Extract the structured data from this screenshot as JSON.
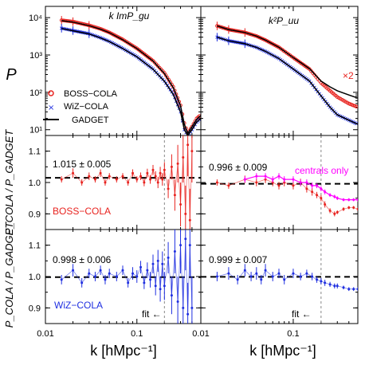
{
  "colors": {
    "boss": "#e8231f",
    "wiz": "#1f2fe0",
    "gadget": "#000000",
    "centrals": "#ff00ff",
    "ref_line": "#000000",
    "fit_line": "#888888"
  },
  "axes": {
    "y_top_label": "P",
    "y_ratio_label": "P_COLA / P_GADGET",
    "x_label": "k [hMpc⁻¹]",
    "x_ticks": [
      "0.01",
      "0.1"
    ],
    "x_ticks_right": [
      "0.01",
      "0.1"
    ],
    "y_top_ticks": [
      "10¹",
      "10²",
      "10³",
      "10⁴"
    ],
    "y_ratio_ticks": [
      "0.9",
      "1.0",
      "1.1"
    ]
  },
  "panels": {
    "top_left_title": "k ImP_gu",
    "top_right_title": "k²P_uu",
    "x2_note": "×2",
    "mid_left_value": "1.015 ± 0.005",
    "mid_left_tag": "BOSS−COLA",
    "mid_right_value": "0.996 ± 0.009",
    "mid_right_tag": "centrals only",
    "bot_left_value": "0.998 ± 0.006",
    "bot_left_tag": "WiZ−COLA",
    "bot_right_value": "0.999 ± 0.007",
    "fit_note_left": "fit ←",
    "fit_note_right": "fit ←"
  },
  "legend": {
    "boss": "BOSS−COLA",
    "wiz": "WiZ−COLA",
    "gadget": "GADGET"
  },
  "chart_data": [
    {
      "type": "line",
      "panel": "top-left",
      "title": "k ImP_gu",
      "xlabel": "",
      "ylabel": "P",
      "xscale": "log",
      "yscale": "log",
      "xlim": [
        0.01,
        0.5
      ],
      "ylim": [
        7,
        20000
      ],
      "series": [
        {
          "name": "BOSS−COLA",
          "x": [
            0.015,
            0.02,
            0.03,
            0.04,
            0.05,
            0.07,
            0.1,
            0.15,
            0.2,
            0.25,
            0.3,
            0.33,
            0.36,
            0.4,
            0.45,
            0.5
          ],
          "y": [
            8500,
            7800,
            6200,
            5000,
            4000,
            2600,
            1500,
            700,
            330,
            140,
            45,
            15,
            8,
            12,
            20,
            25
          ]
        },
        {
          "name": "WiZ−COLA",
          "x": [
            0.015,
            0.02,
            0.03,
            0.04,
            0.05,
            0.07,
            0.1,
            0.15,
            0.2,
            0.25,
            0.3,
            0.33,
            0.36,
            0.4,
            0.45,
            0.5
          ],
          "y": [
            5200,
            4500,
            3700,
            2900,
            2300,
            1500,
            900,
            420,
            200,
            90,
            30,
            10,
            7,
            10,
            16,
            20
          ]
        },
        {
          "name": "GADGET",
          "x": [
            0.015,
            0.02,
            0.03,
            0.04,
            0.05,
            0.07,
            0.1,
            0.15,
            0.2,
            0.25,
            0.3,
            0.33,
            0.36,
            0.4,
            0.45,
            0.5
          ],
          "y": [
            8300,
            7600,
            6100,
            4900,
            3950,
            2550,
            1480,
            690,
            320,
            135,
            44,
            14,
            8,
            12,
            19,
            24
          ]
        },
        {
          "name": "GADGET",
          "x": [
            0.015,
            0.02,
            0.03,
            0.04,
            0.05,
            0.07,
            0.1,
            0.15,
            0.2,
            0.25,
            0.3,
            0.33,
            0.36,
            0.4,
            0.45,
            0.5
          ],
          "y": [
            5100,
            4450,
            3650,
            2850,
            2280,
            1480,
            890,
            415,
            198,
            88,
            30,
            10,
            7,
            10,
            16,
            20
          ]
        }
      ]
    },
    {
      "type": "line",
      "panel": "top-right",
      "title": "k²P_uu",
      "xscale": "log",
      "yscale": "log",
      "xlim": [
        0.01,
        0.5
      ],
      "ylim": [
        7,
        20000
      ],
      "series": [
        {
          "name": "BOSS−COLA",
          "x": [
            0.015,
            0.02,
            0.03,
            0.04,
            0.05,
            0.07,
            0.1,
            0.15,
            0.2,
            0.25,
            0.3,
            0.4,
            0.5
          ],
          "y": [
            6000,
            4800,
            4000,
            3200,
            2500,
            1600,
            850,
            420,
            180,
            110,
            75,
            50,
            40
          ]
        },
        {
          "name": "WiZ−COLA",
          "x": [
            0.015,
            0.02,
            0.03,
            0.04,
            0.05,
            0.07,
            0.1,
            0.15,
            0.2,
            0.25,
            0.3,
            0.4,
            0.5
          ],
          "y": [
            3000,
            2400,
            2000,
            1600,
            1250,
            800,
            420,
            200,
            80,
            40,
            25,
            18,
            14
          ]
        },
        {
          "name": "GADGET",
          "x": [
            0.015,
            0.02,
            0.03,
            0.04,
            0.05,
            0.07,
            0.1,
            0.15,
            0.2,
            0.25,
            0.3,
            0.4,
            0.5
          ],
          "y": [
            6000,
            4800,
            4000,
            3200,
            2500,
            1600,
            850,
            430,
            200,
            140,
            110,
            85,
            70
          ]
        },
        {
          "name": "GADGET",
          "x": [
            0.015,
            0.02,
            0.03,
            0.04,
            0.05,
            0.07,
            0.1,
            0.15,
            0.2,
            0.25,
            0.3,
            0.4,
            0.5
          ],
          "y": [
            3000,
            2400,
            2000,
            1600,
            1250,
            800,
            420,
            200,
            80,
            40,
            25,
            18,
            14
          ]
        }
      ]
    },
    {
      "type": "scatter",
      "panel": "middle-left",
      "xscale": "log",
      "xlim": [
        0.01,
        0.5
      ],
      "ylim": [
        0.85,
        1.15
      ],
      "ylabel": "P_COLA / P_GADGET",
      "annotation": "1.015 ± 0.005",
      "ref_line_y": 1.015,
      "fit_kmax": 0.2,
      "series": [
        {
          "name": "BOSS−COLA",
          "x": [
            0.015,
            0.02,
            0.025,
            0.03,
            0.035,
            0.04,
            0.045,
            0.05,
            0.06,
            0.07,
            0.08,
            0.09,
            0.1,
            0.11,
            0.12,
            0.13,
            0.14,
            0.15,
            0.16,
            0.17,
            0.18,
            0.19,
            0.2,
            0.22,
            0.24,
            0.26,
            0.28,
            0.3,
            0.32,
            0.34,
            0.36,
            0.38,
            0.4
          ],
          "y": [
            1.01,
            1.03,
            1.0,
            1.02,
            1.01,
            1.03,
            1.0,
            1.02,
            1.01,
            1.02,
            1.0,
            1.03,
            1.01,
            1.02,
            1.0,
            1.03,
            1.01,
            1.04,
            1.02,
            1.0,
            1.03,
            1.01,
            1.04,
            0.98,
            1.05,
            0.96,
            1.06,
            0.93,
            1.08,
            0.9,
            1.12,
            0.88,
            1.1
          ],
          "err": [
            0.01,
            0.015,
            0.01,
            0.012,
            0.01,
            0.012,
            0.01,
            0.01,
            0.01,
            0.01,
            0.01,
            0.012,
            0.01,
            0.012,
            0.012,
            0.014,
            0.014,
            0.016,
            0.016,
            0.018,
            0.02,
            0.02,
            0.025,
            0.03,
            0.04,
            0.05,
            0.06,
            0.07,
            0.08,
            0.09,
            0.1,
            0.1,
            0.1
          ]
        }
      ]
    },
    {
      "type": "scatter",
      "panel": "middle-right",
      "xscale": "log",
      "xlim": [
        0.01,
        0.5
      ],
      "ylim": [
        0.85,
        1.15
      ],
      "annotation": "0.996 ± 0.009",
      "ref_line_y": 0.996,
      "fit_kmax": 0.2,
      "series": [
        {
          "name": "BOSS−COLA",
          "x": [
            0.015,
            0.02,
            0.03,
            0.04,
            0.05,
            0.06,
            0.07,
            0.08,
            0.1,
            0.12,
            0.14,
            0.16,
            0.18,
            0.2,
            0.22,
            0.25,
            0.28,
            0.3,
            0.35,
            0.4,
            0.45,
            0.5
          ],
          "y": [
            1.0,
            0.99,
            1.01,
            1.0,
            1.01,
            1.0,
            0.99,
            1.0,
            0.99,
            1.0,
            0.98,
            0.97,
            0.96,
            0.95,
            0.93,
            0.91,
            0.9,
            0.905,
            0.915,
            0.92,
            0.92,
            0.915
          ],
          "err": [
            0.01,
            0.01,
            0.012,
            0.012,
            0.012,
            0.012,
            0.012,
            0.012,
            0.012,
            0.012,
            0.012,
            0.012,
            0.01,
            0.01,
            0.01,
            0.008,
            0.008,
            0.006,
            0.006,
            0.005,
            0.005,
            0.005
          ]
        },
        {
          "name": "centrals only",
          "x": [
            0.03,
            0.04,
            0.05,
            0.06,
            0.07,
            0.08,
            0.1,
            0.12,
            0.14,
            0.16,
            0.18,
            0.2,
            0.22,
            0.25,
            0.28,
            0.3,
            0.35,
            0.4,
            0.45,
            0.5
          ],
          "y": [
            1.01,
            1.02,
            1.02,
            1.01,
            1.02,
            1.01,
            1.01,
            1.0,
            1.0,
            0.99,
            0.99,
            0.98,
            0.97,
            0.96,
            0.955,
            0.95,
            0.945,
            0.945,
            0.945,
            0.945
          ],
          "err": [
            0.01,
            0.01,
            0.01,
            0.01,
            0.01,
            0.01,
            0.01,
            0.01,
            0.01,
            0.01,
            0.008,
            0.008,
            0.008,
            0.006,
            0.006,
            0.006,
            0.005,
            0.005,
            0.005,
            0.005
          ]
        }
      ]
    },
    {
      "type": "scatter",
      "panel": "bottom-left",
      "xscale": "log",
      "xlim": [
        0.01,
        0.5
      ],
      "ylim": [
        0.85,
        1.15
      ],
      "ylabel": "P_COLA / P_GADGET",
      "annotation": "0.998 ± 0.006",
      "ref_line_y": 0.998,
      "fit_kmax": 0.2,
      "series": [
        {
          "name": "WiZ−COLA",
          "x": [
            0.015,
            0.02,
            0.025,
            0.03,
            0.035,
            0.04,
            0.045,
            0.05,
            0.06,
            0.07,
            0.08,
            0.09,
            0.1,
            0.11,
            0.12,
            0.13,
            0.14,
            0.15,
            0.16,
            0.17,
            0.18,
            0.19,
            0.2,
            0.22,
            0.24,
            0.26,
            0.28,
            0.3,
            0.32,
            0.34,
            0.36,
            0.38,
            0.4
          ],
          "y": [
            0.99,
            1.02,
            0.98,
            1.01,
            1.0,
            1.02,
            0.99,
            1.01,
            1.0,
            1.02,
            0.98,
            1.01,
            1.0,
            1.03,
            0.98,
            1.02,
            0.99,
            1.04,
            0.97,
            1.05,
            0.96,
            1.04,
            0.97,
            1.06,
            0.94,
            1.08,
            0.92,
            1.1,
            0.9,
            1.12,
            0.88,
            1.1,
            0.9
          ],
          "err": [
            0.015,
            0.02,
            0.015,
            0.015,
            0.015,
            0.015,
            0.015,
            0.015,
            0.015,
            0.015,
            0.015,
            0.02,
            0.02,
            0.02,
            0.02,
            0.025,
            0.025,
            0.03,
            0.03,
            0.035,
            0.04,
            0.04,
            0.045,
            0.05,
            0.06,
            0.07,
            0.08,
            0.09,
            0.1,
            0.1,
            0.1,
            0.1,
            0.1
          ]
        }
      ]
    },
    {
      "type": "scatter",
      "panel": "bottom-right",
      "xscale": "log",
      "xlim": [
        0.01,
        0.5
      ],
      "ylim": [
        0.85,
        1.15
      ],
      "annotation": "0.999 ± 0.007",
      "ref_line_y": 0.999,
      "fit_kmax": 0.2,
      "series": [
        {
          "name": "WiZ−COLA",
          "x": [
            0.015,
            0.02,
            0.025,
            0.03,
            0.035,
            0.04,
            0.045,
            0.05,
            0.06,
            0.07,
            0.08,
            0.1,
            0.12,
            0.14,
            0.16,
            0.18,
            0.2,
            0.22,
            0.25,
            0.28,
            0.3,
            0.35,
            0.4,
            0.45,
            0.5
          ],
          "y": [
            1.0,
            1.01,
            0.99,
            1.02,
            1.0,
            1.01,
            0.99,
            1.02,
            1.0,
            1.01,
            0.99,
            1.01,
            1.0,
            1.01,
            1.0,
            0.99,
            0.985,
            0.98,
            0.975,
            0.97,
            0.97,
            0.965,
            0.96,
            0.96,
            0.96
          ],
          "err": [
            0.015,
            0.02,
            0.015,
            0.02,
            0.015,
            0.02,
            0.015,
            0.02,
            0.015,
            0.015,
            0.015,
            0.015,
            0.012,
            0.012,
            0.012,
            0.01,
            0.01,
            0.01,
            0.008,
            0.008,
            0.008,
            0.006,
            0.006,
            0.006,
            0.006
          ]
        }
      ]
    }
  ]
}
